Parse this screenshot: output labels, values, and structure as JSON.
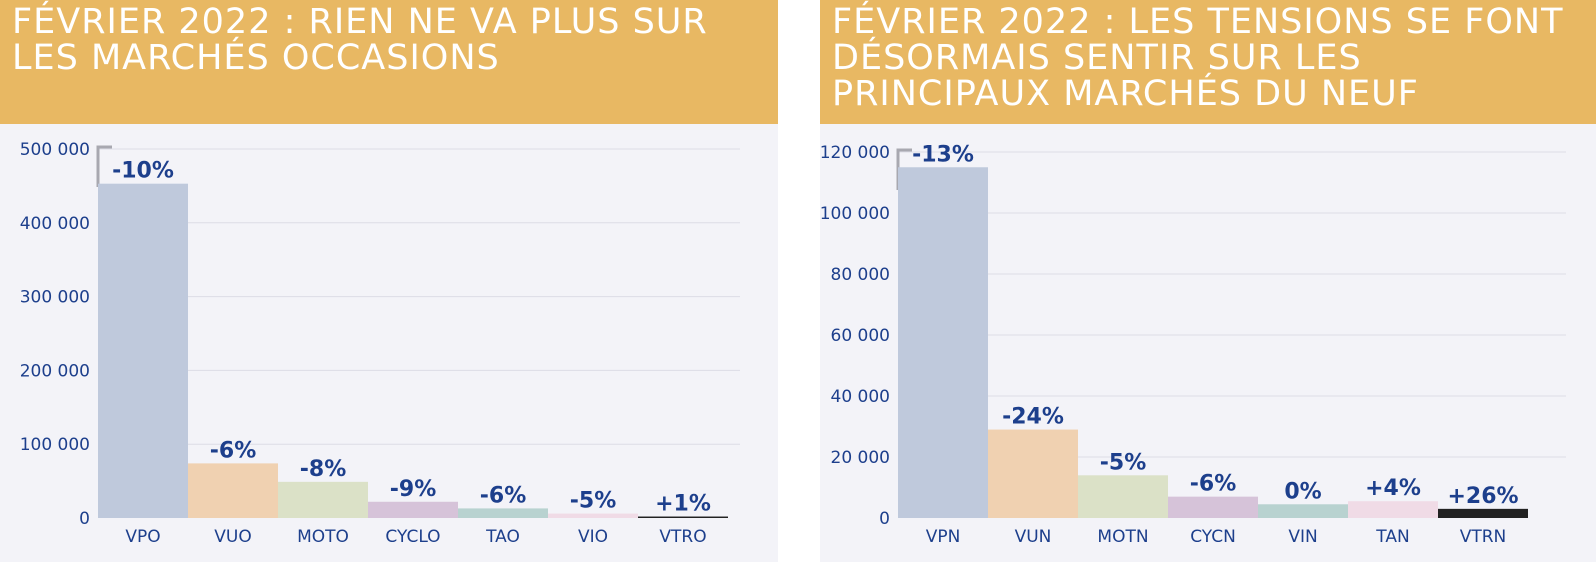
{
  "chart_data": [
    {
      "type": "bar",
      "title": "FÉVRIER 2022 : RIEN NE VA PLUS SUR LES MARCHÉS OCCASIONS",
      "categories": [
        "VPO",
        "VUO",
        "MOTO",
        "CYCLO",
        "TAO",
        "VIO",
        "VTRO"
      ],
      "values": [
        453000,
        74000,
        49000,
        22000,
        13000,
        6000,
        2000
      ],
      "labels": [
        "-10%",
        "-6%",
        "-8%",
        "-9%",
        "-6%",
        "-5%",
        "+1%"
      ],
      "colors": [
        "#bfc9dc",
        "#f0d1b1",
        "#dbe1c7",
        "#d6c3d9",
        "#b8d2d0",
        "#f0dbe6",
        "#222222"
      ],
      "yticks": [
        0,
        100000,
        200000,
        300000,
        400000,
        500000
      ],
      "ytick_labels": [
        "0",
        "100 000",
        "200 000",
        "300 000",
        "400 000",
        "500 000"
      ],
      "ylim": [
        0,
        500000
      ],
      "xlabel": "",
      "ylabel": ""
    },
    {
      "type": "bar",
      "title": "FÉVRIER 2022 : LES TENSIONS SE FONT DÉSORMAIS SENTIR SUR LES PRINCIPAUX MARCHÉS DU NEUF",
      "categories": [
        "VPN",
        "VUN",
        "MOTN",
        "CYCN",
        "VIN",
        "TAN",
        "VTRN"
      ],
      "values": [
        115000,
        29000,
        14000,
        7000,
        4500,
        5500,
        3000
      ],
      "labels": [
        "-13%",
        "-24%",
        "-5%",
        "-6%",
        "0%",
        "+4%",
        "+26%"
      ],
      "colors": [
        "#bfc9dc",
        "#f0d1b1",
        "#dbe1c7",
        "#d6c3d9",
        "#b8d2d0",
        "#f0dbe6",
        "#222222"
      ],
      "yticks": [
        0,
        20000,
        40000,
        60000,
        80000,
        100000,
        120000
      ],
      "ytick_labels": [
        "0",
        "20 000",
        "40 000",
        "60 000",
        "80 000",
        "100 000",
        "120 000"
      ],
      "ylim": [
        0,
        120000
      ],
      "xlabel": "",
      "ylabel": ""
    }
  ]
}
